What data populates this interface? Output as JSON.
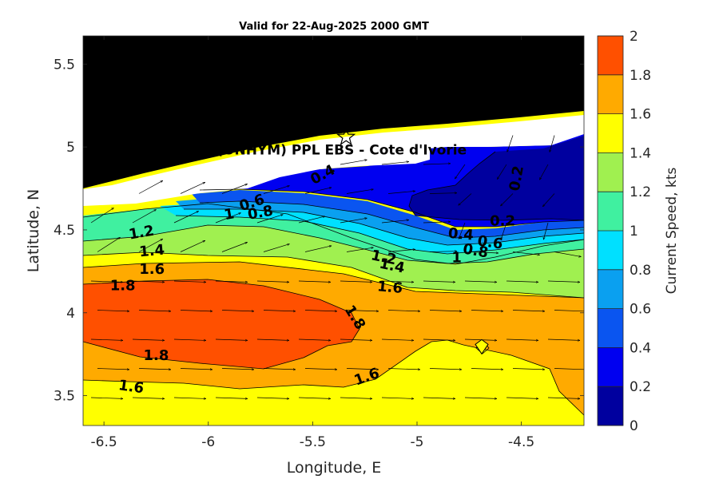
{
  "chart_data": {
    "type": "contour",
    "title": "Valid for 22-Aug-2025 2000 GMT",
    "xlabel": "Longitude, E",
    "ylabel": "Latitude, N",
    "xlim": [
      -6.6,
      -4.2
    ],
    "ylim": [
      3.32,
      5.67
    ],
    "xticks": [
      "-6.5",
      "-6",
      "-5.5",
      "-5",
      "-4.5"
    ],
    "yticks": [
      "3.5",
      "4",
      "4.5",
      "5",
      "5.5"
    ],
    "colorbar": {
      "label": "Current Speed, kts",
      "ticks": [
        "0",
        "0.2",
        "0.4",
        "0.6",
        "0.8",
        "1",
        "1.2",
        "1.4",
        "1.6",
        "1.8",
        "2"
      ],
      "levels": [
        0,
        0.2,
        0.4,
        0.6,
        0.8,
        1.0,
        1.2,
        1.4,
        1.6,
        1.8,
        2.0
      ],
      "colors": [
        "#00009f",
        "#0000f0",
        "#0a55f0",
        "#0aa0f0",
        "#00e0ff",
        "#40f0a0",
        "#a0f050",
        "#ffff00",
        "#ffaa00",
        "#ff5000"
      ]
    },
    "site": {
      "label": "A (ONHYM) PPL EBS  - Cote d'Ivorie",
      "lon": -5.34,
      "lat": 5.06
    },
    "marker": {
      "lon": -4.69,
      "lat": 3.8
    },
    "contour_labels": [
      {
        "text": "0.4",
        "lon": -5.45,
        "lat": 4.83,
        "rot": -28
      },
      {
        "text": "0.6",
        "lon": -5.79,
        "lat": 4.66,
        "rot": -18
      },
      {
        "text": "0.8",
        "lon": -5.75,
        "lat": 4.6,
        "rot": -10
      },
      {
        "text": "1",
        "lon": -5.9,
        "lat": 4.59,
        "rot": -10
      },
      {
        "text": "0.2",
        "lon": -4.52,
        "lat": 4.81,
        "rot": -80
      },
      {
        "text": "0.2",
        "lon": -4.59,
        "lat": 4.55,
        "rot": 0
      },
      {
        "text": "0.4",
        "lon": -4.79,
        "lat": 4.47,
        "rot": 5
      },
      {
        "text": "0.6",
        "lon": -4.65,
        "lat": 4.42,
        "rot": 8
      },
      {
        "text": "0.8",
        "lon": -4.72,
        "lat": 4.37,
        "rot": 10
      },
      {
        "text": "1",
        "lon": -4.81,
        "lat": 4.33,
        "rot": 0
      },
      {
        "text": "1.2",
        "lon": -6.32,
        "lat": 4.48,
        "rot": -10
      },
      {
        "text": "1.4",
        "lon": -6.27,
        "lat": 4.37,
        "rot": -5
      },
      {
        "text": "1.6",
        "lon": -6.27,
        "lat": 4.26,
        "rot": 0
      },
      {
        "text": "1.8",
        "lon": -6.41,
        "lat": 4.16,
        "rot": 0
      },
      {
        "text": "1.2",
        "lon": -5.16,
        "lat": 4.33,
        "rot": 12
      },
      {
        "text": "1.4",
        "lon": -5.12,
        "lat": 4.28,
        "rot": 12
      },
      {
        "text": "1.6",
        "lon": -5.13,
        "lat": 4.15,
        "rot": 5
      },
      {
        "text": "1.8",
        "lon": -5.3,
        "lat": 3.97,
        "rot": 58
      },
      {
        "text": "1.8",
        "lon": -6.25,
        "lat": 3.74,
        "rot": 0
      },
      {
        "text": "1.6",
        "lon": -6.37,
        "lat": 3.55,
        "rot": 8
      },
      {
        "text": "1.6",
        "lon": -5.24,
        "lat": 3.61,
        "rot": -20
      }
    ]
  }
}
